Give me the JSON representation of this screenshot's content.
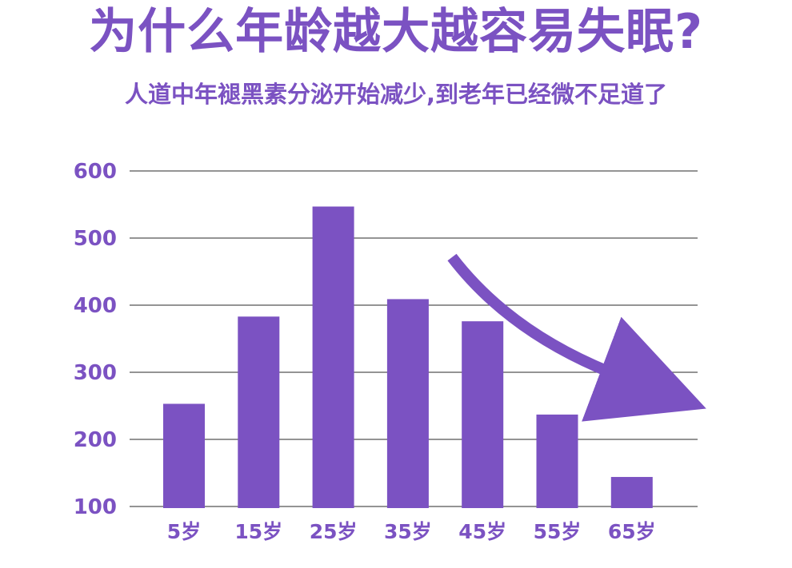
{
  "title": "为什么年龄越大越容易失眠?",
  "subtitle": "人道中年褪黑素分泌开始减少,到老年已经微不足道了",
  "colors": {
    "primary": "#7b52c2",
    "grid": "#555555",
    "background": "#ffffff"
  },
  "chart_data": {
    "type": "bar",
    "categories": [
      "5岁",
      "15岁",
      "25岁",
      "35岁",
      "45岁",
      "55岁",
      "65岁"
    ],
    "values": [
      253,
      383,
      547,
      409,
      376,
      237,
      144
    ],
    "ylim": [
      100,
      600
    ],
    "yticks": [
      "100",
      "200",
      "300",
      "400",
      "500",
      "600"
    ],
    "grid": true,
    "annotation": "downward-trend-arrow"
  }
}
